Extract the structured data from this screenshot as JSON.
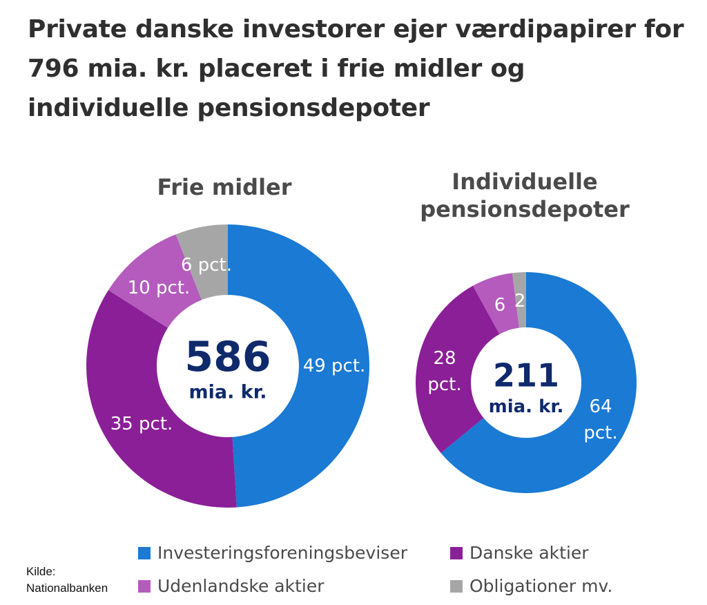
{
  "title": "Private danske investorer ejer værdipapirer for 796 mia. kr. placeret i frie midler og individuelle pensionsdepoter",
  "source": {
    "line1": "Kilde:",
    "line2": "Nationalbanken"
  },
  "colors": {
    "Investeringsforeningsbeviser": "#1a7ad4",
    "Danske aktier": "#8b1f97",
    "Udenlandske aktier": "#b45bbd",
    "Obligationer mv.": "#a6a6a6",
    "center_text": "#0f2a6b"
  },
  "legend": [
    "Investeringsforeningsbeviser",
    "Danske aktier",
    "Udenlandske aktier",
    "Obligationer mv."
  ],
  "chart_data": [
    {
      "type": "pie",
      "title": "Frie midler",
      "total": {
        "value": "586",
        "unit": "mia. kr."
      },
      "categories": [
        "Investeringsforeningsbeviser",
        "Danske aktier",
        "Udenlandske aktier",
        "Obligationer mv."
      ],
      "values": [
        49,
        35,
        10,
        6
      ],
      "labels": [
        "49 pct.",
        "35 pct.",
        "10 pct.",
        "6 pct."
      ]
    },
    {
      "type": "pie",
      "title": "Individuelle pensionsdepoter",
      "total": {
        "value": "211",
        "unit": "mia. kr."
      },
      "categories": [
        "Investeringsforeningsbeviser",
        "Danske aktier",
        "Udenlandske aktier",
        "Obligationer mv."
      ],
      "values": [
        64,
        28,
        6,
        2
      ],
      "labels": [
        "64\npct.",
        "28\npct.",
        "6",
        "2"
      ]
    }
  ]
}
